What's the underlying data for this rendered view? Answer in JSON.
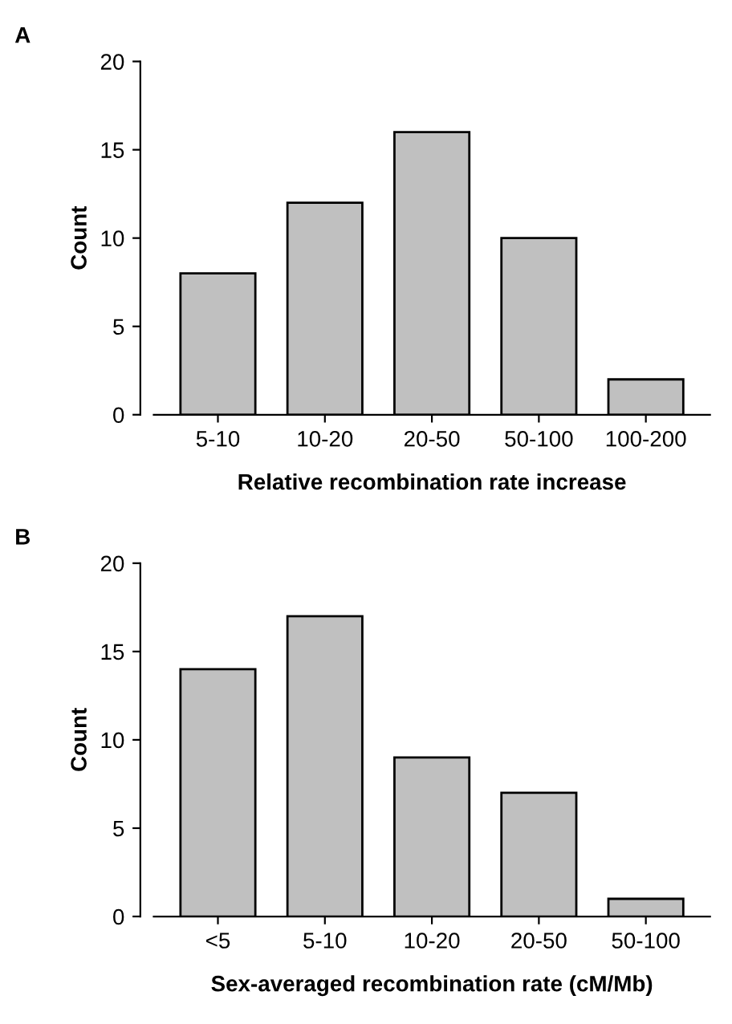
{
  "chart_data": [
    {
      "type": "bar",
      "title": "A",
      "xlabel": "Relative recombination rate increase",
      "ylabel": "Count",
      "categories": [
        "5-10",
        "10-20",
        "20-50",
        "50-100",
        "100-200"
      ],
      "values": [
        8,
        12,
        16,
        10,
        2
      ],
      "color": "#c0c0c0",
      "ylim": [
        0,
        20
      ],
      "yticks": [
        0,
        5,
        10,
        15,
        20
      ],
      "grid": false,
      "legend": false
    },
    {
      "type": "bar",
      "title": "B",
      "xlabel": "Sex-averaged recombination rate (cM/Mb)",
      "ylabel": "Count",
      "categories": [
        "<5",
        "5-10",
        "10-20",
        "20-50",
        "50-100"
      ],
      "values": [
        14,
        17,
        9,
        7,
        1
      ],
      "color": "#c0c0c0",
      "ylim": [
        0,
        20
      ],
      "yticks": [
        0,
        5,
        10,
        15,
        20
      ],
      "grid": false,
      "legend": false
    }
  ]
}
